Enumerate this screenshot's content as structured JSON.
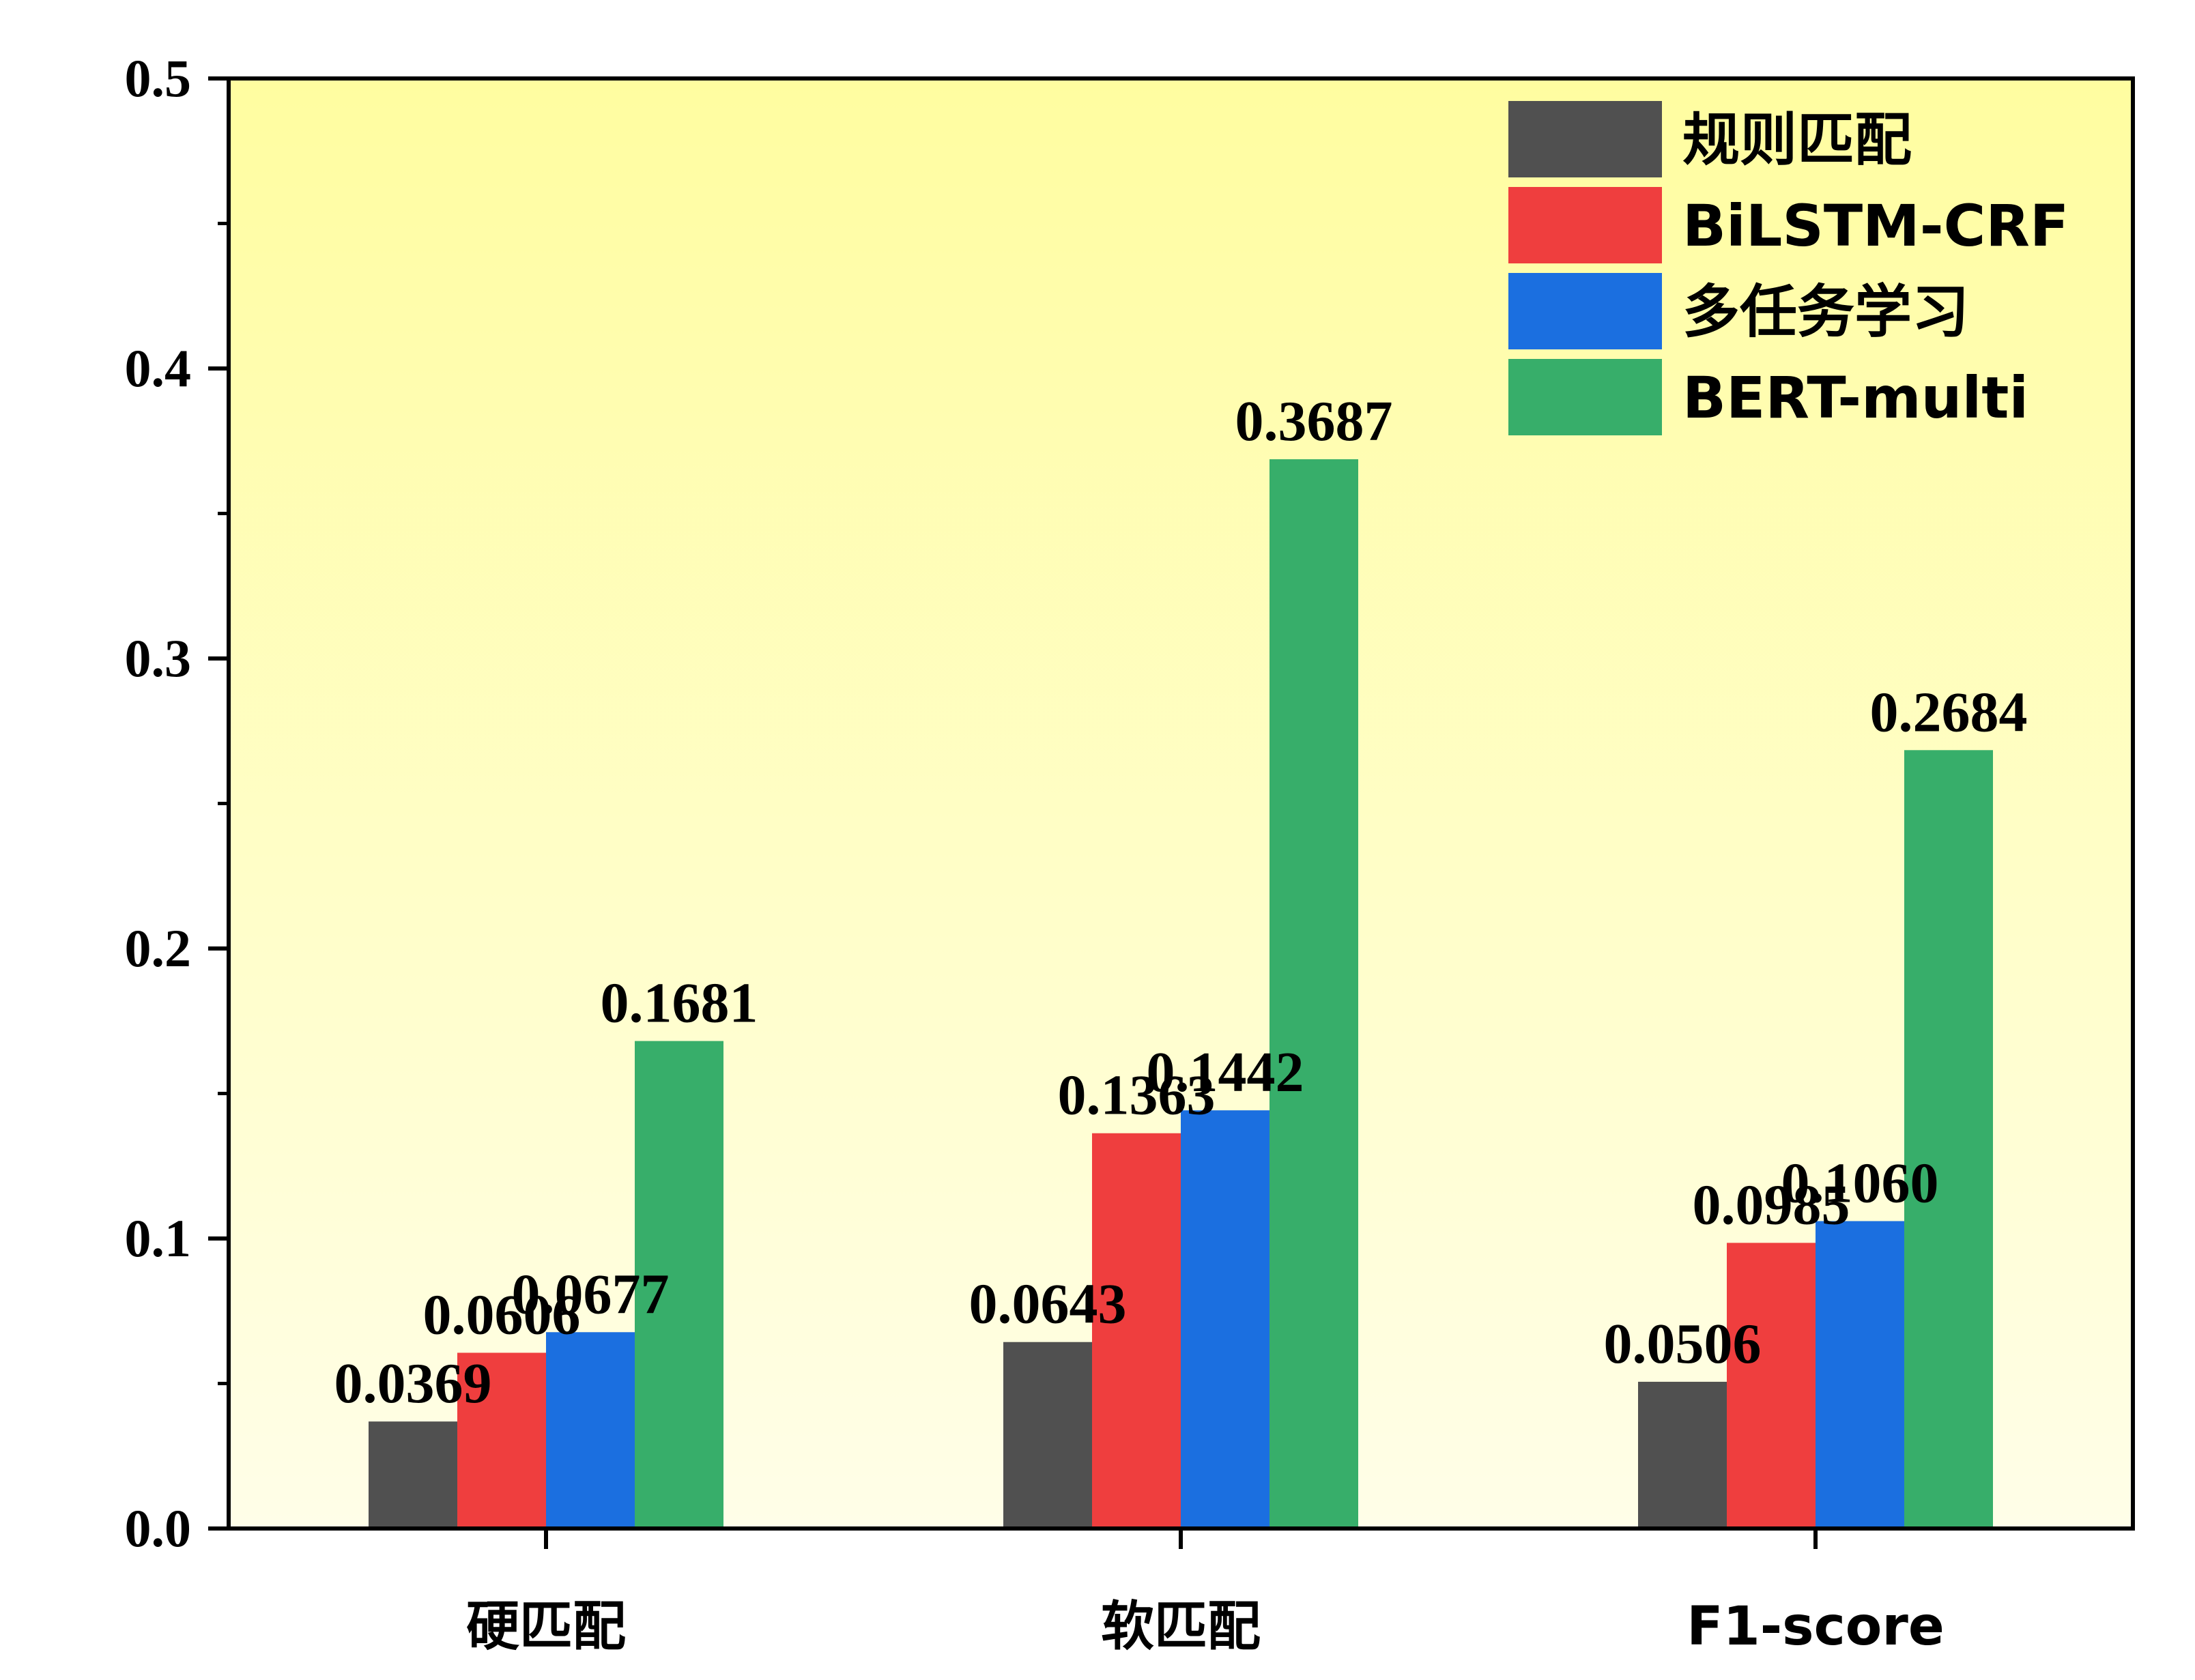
{
  "chart_data": {
    "type": "bar",
    "title": "",
    "xlabel": "",
    "ylabel": "",
    "ylim": [
      0,
      0.5
    ],
    "yticks": [
      "0.0",
      "0.1",
      "0.2",
      "0.3",
      "0.4",
      "0.5"
    ],
    "y_tick_values": [
      0,
      0.1,
      0.2,
      0.3,
      0.4,
      0.5
    ],
    "categories": [
      "硬匹配",
      "软匹配",
      "F1-score"
    ],
    "legend_position": "top-right",
    "grid": false,
    "background": {
      "top": "#FFFDA0",
      "bottom": "#FFFEE8"
    },
    "series": [
      {
        "name": "规则匹配",
        "color": "#505050",
        "values": [
          0.0369,
          0.0643,
          0.0506
        ],
        "labels": [
          "0.0369",
          "0.0643",
          "0.0506"
        ]
      },
      {
        "name": "BiLSTM-CRF",
        "color": "#EF3E3E",
        "values": [
          0.0606,
          0.1363,
          0.0985
        ],
        "labels": [
          "0.0606",
          "0.1363",
          "0.0985"
        ]
      },
      {
        "name": "多任务学习",
        "color": "#1B6FE0",
        "values": [
          0.0677,
          0.1442,
          0.106
        ],
        "labels": [
          "0.0677",
          "0.1442",
          "0.1060"
        ]
      },
      {
        "name": "BERT-multi",
        "color": "#37AE6A",
        "values": [
          0.1681,
          0.3687,
          0.2684
        ],
        "labels": [
          "0.1681",
          "0.3687",
          "0.2684"
        ]
      }
    ]
  }
}
